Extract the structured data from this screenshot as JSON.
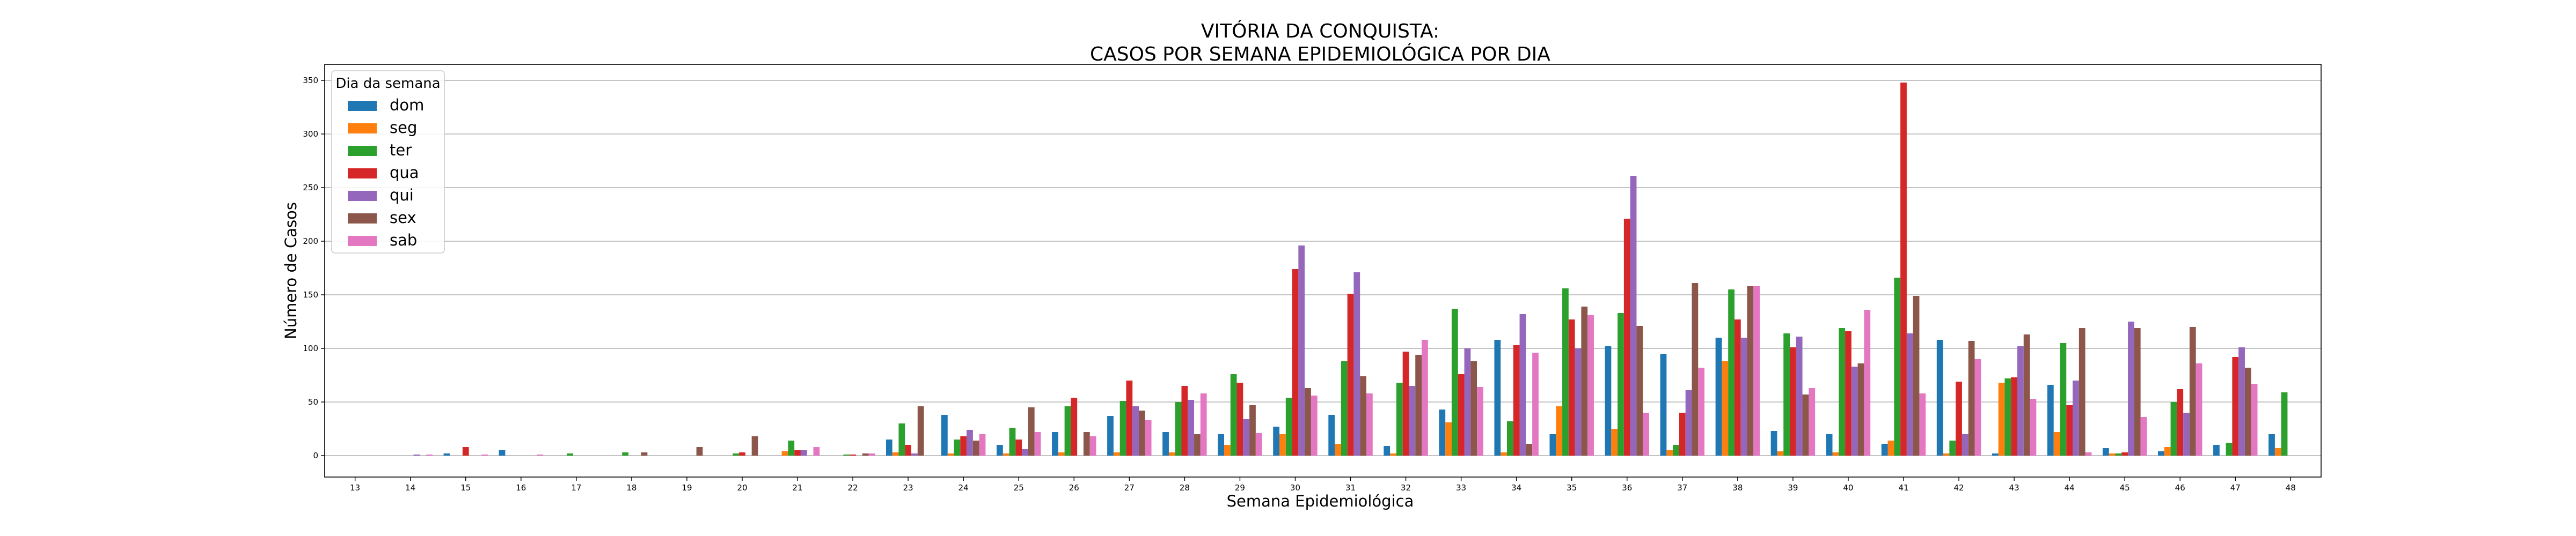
{
  "chart_data": {
    "type": "bar",
    "title": "VITÓRIA DA CONQUISTA:",
    "subtitle": "CASOS POR SEMANA EPIDEMIOLÓGICA POR DIA",
    "xlabel": "Semana Epidemiológica",
    "ylabel": "Número de Casos",
    "ylim": [
      -20,
      365
    ],
    "yticks": [
      0,
      50,
      100,
      150,
      200,
      250,
      300,
      350
    ],
    "grid": "horizontal",
    "legend": {
      "title": "Dia da semana",
      "placement": "top-left"
    },
    "categories": [
      "13",
      "14",
      "15",
      "16",
      "17",
      "18",
      "19",
      "20",
      "21",
      "22",
      "23",
      "24",
      "25",
      "26",
      "27",
      "28",
      "29",
      "30",
      "31",
      "32",
      "33",
      "34",
      "35",
      "36",
      "37",
      "38",
      "39",
      "40",
      "41",
      "42",
      "43",
      "44",
      "45",
      "46",
      "47",
      "48"
    ],
    "series": [
      {
        "name": "dom",
        "color": "#1f77b4",
        "values": [
          0,
          0,
          2,
          5,
          0,
          0,
          0,
          0,
          0,
          0,
          15,
          38,
          10,
          22,
          37,
          22,
          20,
          27,
          38,
          9,
          43,
          108,
          20,
          102,
          95,
          110,
          23,
          20,
          11,
          108,
          2,
          66,
          7,
          4,
          10,
          20
        ]
      },
      {
        "name": "seg",
        "color": "#ff7f0e",
        "values": [
          0,
          0,
          0,
          0,
          0,
          0,
          0,
          0,
          4,
          0,
          3,
          2,
          2,
          3,
          3,
          3,
          10,
          20,
          11,
          2,
          31,
          3,
          46,
          25,
          5,
          88,
          4,
          3,
          14,
          2,
          68,
          22,
          2,
          8,
          0,
          7
        ]
      },
      {
        "name": "ter",
        "color": "#2ca02c",
        "values": [
          0,
          0,
          0,
          0,
          2,
          3,
          0,
          2,
          14,
          1,
          30,
          15,
          26,
          46,
          51,
          50,
          76,
          54,
          88,
          68,
          137,
          32,
          156,
          133,
          10,
          155,
          114,
          119,
          166,
          14,
          72,
          105,
          2,
          50,
          12,
          59
        ]
      },
      {
        "name": "qua",
        "color": "#d62728",
        "values": [
          0,
          0,
          8,
          0,
          0,
          0,
          0,
          3,
          5,
          1,
          10,
          18,
          15,
          54,
          70,
          65,
          68,
          174,
          151,
          97,
          76,
          103,
          127,
          221,
          40,
          127,
          101,
          116,
          348,
          69,
          73,
          47,
          3,
          62,
          92,
          0
        ]
      },
      {
        "name": "qui",
        "color": "#9467bd",
        "values": [
          0,
          1,
          0,
          0,
          0,
          0,
          0,
          0,
          5,
          0,
          2,
          24,
          6,
          0,
          46,
          52,
          34,
          196,
          171,
          65,
          100,
          132,
          100,
          261,
          61,
          110,
          111,
          83,
          114,
          20,
          102,
          70,
          125,
          40,
          101,
          0
        ]
      },
      {
        "name": "sex",
        "color": "#8c564b",
        "values": [
          0,
          0,
          0,
          0,
          0,
          3,
          8,
          18,
          0,
          2,
          46,
          14,
          45,
          22,
          42,
          20,
          47,
          63,
          74,
          94,
          88,
          11,
          139,
          121,
          161,
          158,
          57,
          86,
          149,
          107,
          113,
          119,
          119,
          120,
          82,
          0
        ]
      },
      {
        "name": "sab",
        "color": "#e377c2",
        "values": [
          0,
          1,
          1,
          1,
          0,
          0,
          0,
          0,
          8,
          2,
          0,
          20,
          22,
          18,
          33,
          58,
          21,
          56,
          58,
          108,
          64,
          96,
          131,
          40,
          82,
          158,
          63,
          136,
          58,
          90,
          53,
          3,
          36,
          86,
          67,
          0
        ]
      }
    ]
  }
}
